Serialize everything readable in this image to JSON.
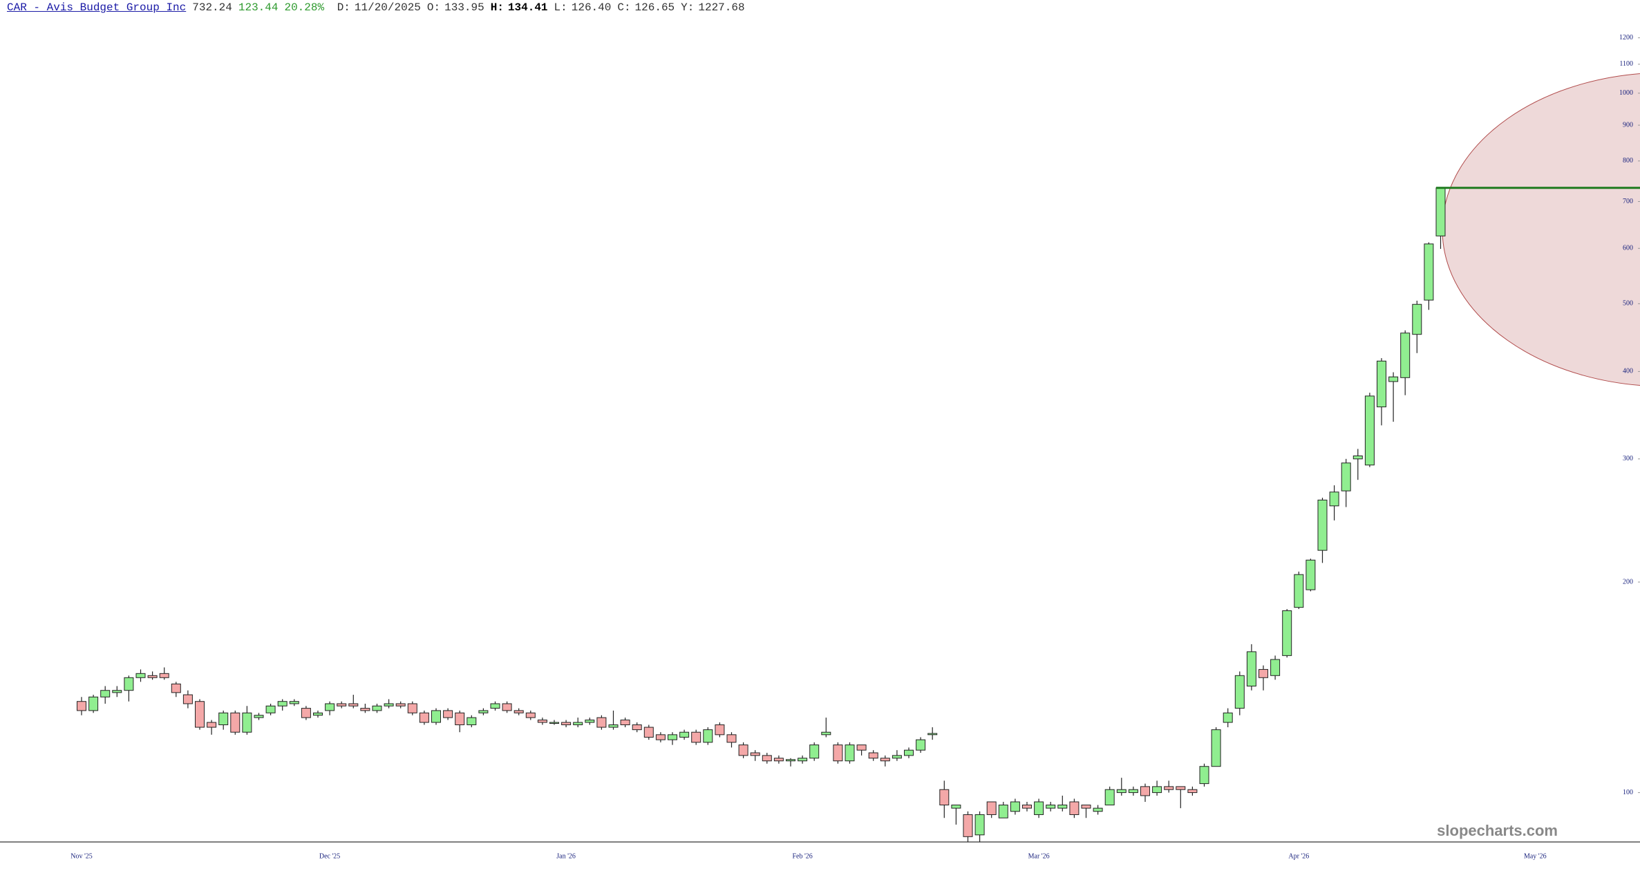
{
  "header": {
    "symbol": "CAR - Avis Budget Group Inc",
    "last": "732.24",
    "change": "123.44",
    "change_pct": "20.28%",
    "fields": [
      {
        "label": "D:",
        "value": "11/20/2025"
      },
      {
        "label": "O:",
        "value": "133.95"
      },
      {
        "label": "H:",
        "value": "134.41"
      },
      {
        "label": "L:",
        "value": "126.40"
      },
      {
        "label": "C:",
        "value": "126.65"
      },
      {
        "label": "Y:",
        "value": "1227.68"
      }
    ]
  },
  "watermark": "slopecharts.com",
  "chart_data": {
    "type": "candlestick",
    "log_scale": true,
    "up_color": "#90ee90",
    "down_color": "#f4a8a8",
    "last_line_color": "#1e7a1e",
    "ylim": [
      85,
      1359
    ],
    "yticks": [
      100,
      200,
      300,
      400,
      500,
      600,
      700,
      800,
      900,
      1000,
      1100,
      1200
    ],
    "categories": [
      "Nov '25",
      null,
      null,
      null,
      null,
      null,
      null,
      null,
      null,
      null,
      null,
      null,
      null,
      null,
      null,
      null,
      null,
      null,
      null,
      null,
      null,
      "Dec '25",
      null,
      null,
      null,
      null,
      null,
      null,
      null,
      null,
      null,
      null,
      null,
      null,
      null,
      null,
      null,
      null,
      null,
      null,
      null,
      "Jan '26",
      null,
      null,
      null,
      null,
      null,
      null,
      null,
      null,
      null,
      null,
      null,
      null,
      null,
      null,
      null,
      null,
      null,
      null,
      null,
      "Feb '26",
      null,
      null,
      null,
      null,
      null,
      null,
      null,
      null,
      null,
      null,
      null,
      null,
      null,
      null,
      null,
      null,
      null,
      null,
      null,
      "Mar '26",
      null,
      null,
      null,
      null,
      null,
      null,
      null,
      null,
      null,
      null,
      null,
      null,
      null,
      null,
      null,
      null,
      null,
      null,
      null,
      null,
      null,
      "Apr '26",
      null,
      null,
      null,
      null,
      null,
      null,
      null,
      null,
      null,
      null,
      null,
      null,
      null,
      null,
      null,
      null,
      null,
      null,
      null,
      "May '26",
      null,
      null,
      null,
      null,
      null,
      null
    ],
    "open": [
      135,
      131,
      137,
      139,
      140,
      146,
      147,
      148,
      143,
      138,
      135,
      126,
      125,
      130,
      122,
      128,
      130,
      133,
      134,
      132,
      129,
      131,
      134,
      134,
      132,
      131,
      133,
      134,
      134,
      130,
      126,
      131,
      130,
      125,
      130,
      132,
      134,
      131,
      130,
      127,
      126,
      126,
      125,
      126,
      128,
      124,
      127,
      125,
      124,
      121,
      119,
      120,
      122,
      118,
      125,
      121,
      117,
      114,
      113,
      112,
      111,
      111,
      112,
      121,
      117,
      111,
      117,
      114,
      112,
      112,
      113,
      115,
      121,
      101,
      95,
      93,
      87,
      97,
      92,
      94,
      96,
      93,
      95,
      95,
      97,
      96,
      94,
      96,
      100,
      100,
      102,
      100,
      102,
      102,
      101,
      103,
      109,
      126,
      132,
      142,
      150,
      147,
      157,
      184,
      195,
      222,
      257,
      270,
      300,
      294,
      356,
      387,
      392,
      452,
      506,
      625,
      null,
      null,
      null,
      null,
      null,
      null,
      null,
      null,
      null,
      null,
      null,
      null,
      null,
      null
    ],
    "high": [
      137,
      138,
      142,
      142,
      147,
      150,
      149,
      151,
      144,
      140,
      136,
      127,
      131,
      131,
      133,
      130,
      134,
      136,
      136,
      133,
      131,
      135,
      135,
      138,
      134,
      134,
      136,
      135,
      135,
      131,
      132,
      132,
      131,
      129,
      132,
      135,
      135,
      132,
      131,
      128,
      127,
      127,
      128,
      128,
      129,
      131,
      128,
      126,
      125,
      122,
      122,
      123,
      123,
      124,
      126,
      122,
      118,
      115,
      114,
      113,
      112,
      113,
      118,
      128,
      118,
      118,
      117,
      115,
      113,
      115,
      116,
      120,
      124,
      104,
      96,
      94,
      94,
      97,
      97,
      98,
      97,
      98,
      97,
      99,
      98,
      96,
      96,
      102,
      105,
      102,
      103,
      104,
      104,
      102,
      102,
      110,
      124,
      132,
      149,
      163,
      152,
      157,
      183,
      207,
      216,
      264,
      275,
      300,
      310,
      373,
      418,
      399,
      458,
      505,
      612,
      732.24,
      null,
      null,
      null,
      null,
      null,
      null,
      null,
      null,
      null,
      null,
      null,
      null,
      null,
      null
    ],
    "low": [
      129,
      130,
      134,
      137,
      135,
      144,
      145,
      145,
      137,
      132,
      123,
      121,
      123,
      121,
      121,
      127,
      129,
      131,
      133,
      127,
      128,
      129,
      132,
      132,
      130,
      130,
      132,
      132,
      129,
      125,
      125,
      127,
      122,
      124,
      129,
      131,
      130,
      129,
      127,
      125,
      125,
      124,
      124,
      125,
      123,
      123,
      124,
      122,
      119,
      118,
      117,
      119,
      117,
      117,
      120,
      116,
      112,
      111,
      110,
      110,
      109,
      110,
      111,
      120,
      110,
      110,
      113,
      111,
      109,
      111,
      112,
      114,
      119,
      92,
      90,
      85,
      85,
      92,
      92,
      93,
      94,
      92,
      94,
      94,
      92,
      92,
      93,
      96,
      99,
      99,
      97,
      99,
      100,
      95,
      99,
      102,
      109,
      124,
      129,
      140,
      140,
      145,
      156,
      183,
      194,
      213,
      245,
      256,
      280,
      292,
      335,
      339,
      370,
      425,
      490,
      599,
      null,
      null,
      null,
      null,
      null,
      null,
      null,
      null,
      null,
      null,
      null,
      null,
      null,
      null
    ],
    "close": [
      131,
      137,
      140,
      140,
      146,
      148,
      146,
      146,
      139,
      134,
      124,
      124,
      130,
      122,
      130,
      129,
      133,
      135,
      135,
      128,
      130,
      134,
      133,
      133,
      131,
      133,
      134,
      133,
      130,
      126,
      131,
      128,
      125,
      128,
      131,
      134,
      131,
      130,
      128,
      126,
      126,
      125,
      126,
      127,
      124,
      125,
      125,
      123,
      120,
      119,
      121,
      122,
      118,
      123,
      121,
      118,
      113,
      113,
      111,
      111,
      111.5,
      112,
      117,
      122,
      111,
      117,
      115,
      112,
      111,
      113,
      115,
      119,
      121.5,
      96,
      96,
      86.5,
      93,
      93,
      96,
      97,
      95,
      97,
      96,
      96,
      93,
      95,
      95,
      101,
      101,
      101,
      99,
      102,
      101,
      101,
      100,
      109,
      123,
      130,
      147,
      159,
      146,
      155,
      182,
      205,
      215,
      262,
      269,
      296,
      303,
      369,
      414,
      393,
      454,
      499,
      608.8,
      732.24,
      null,
      null,
      null,
      null,
      null,
      null,
      null,
      null,
      null,
      null,
      null,
      null,
      null,
      null
    ]
  }
}
